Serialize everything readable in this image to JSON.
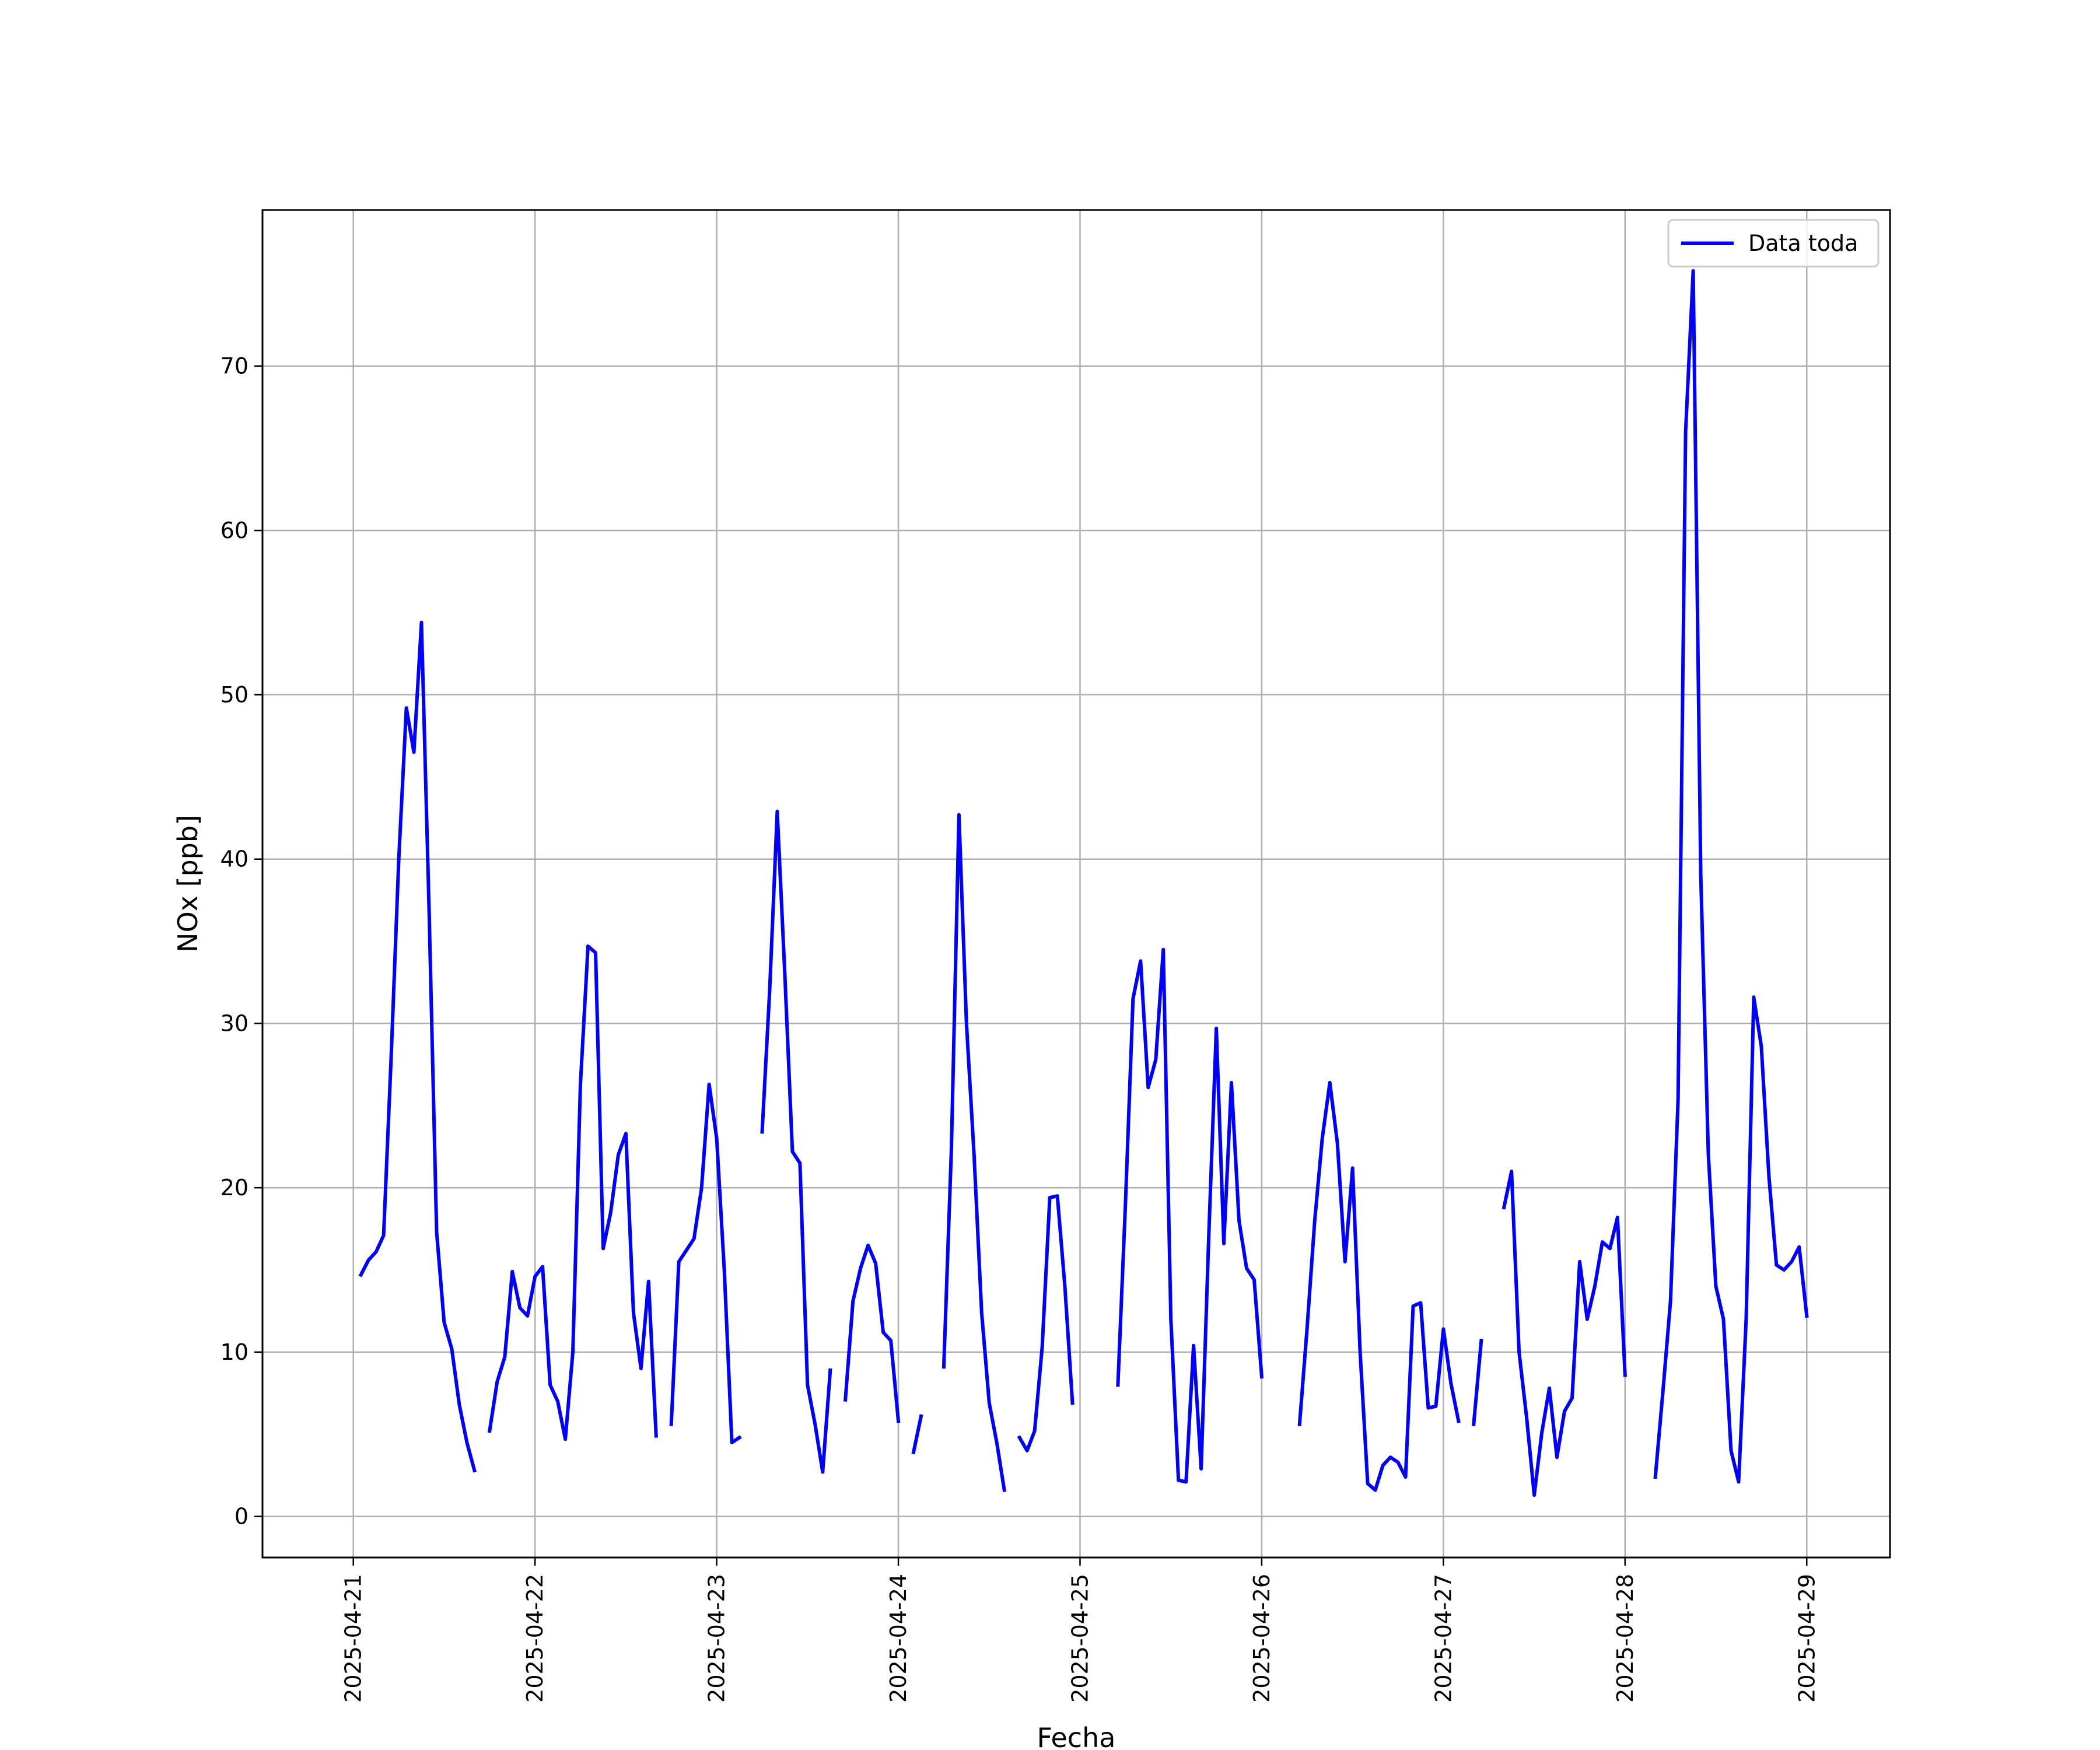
{
  "chart_data": {
    "type": "line",
    "title": "",
    "xlabel": "Fecha",
    "ylabel": "NOx [ppb]",
    "x_ticks": [
      "2025-04-21",
      "2025-04-22",
      "2025-04-23",
      "2025-04-24",
      "2025-04-25",
      "2025-04-26",
      "2025-04-27",
      "2025-04-28",
      "2025-04-29"
    ],
    "y_ticks": [
      "0",
      "10",
      "20",
      "30",
      "40",
      "50",
      "60",
      "70"
    ],
    "xlim": [
      "2025-04-20T12:00",
      "2025-04-29T11:00"
    ],
    "ylim": [
      -2.5,
      79.5
    ],
    "grid": true,
    "legend_position": "top-right",
    "series": [
      {
        "name": "Data toda",
        "color": "#0000ff",
        "segments": [
          [
            [
              "2025-04-21T01:00",
              14.7
            ],
            [
              "2025-04-21T02:00",
              15.6
            ],
            [
              "2025-04-21T03:00",
              16.1
            ],
            [
              "2025-04-21T04:00",
              17.1
            ],
            [
              "2025-04-21T05:00",
              28.0
            ],
            [
              "2025-04-21T06:00",
              40.0
            ],
            [
              "2025-04-21T07:00",
              49.2
            ],
            [
              "2025-04-21T08:00",
              46.5
            ],
            [
              "2025-04-21T09:00",
              54.4
            ],
            [
              "2025-04-21T10:00",
              37.0
            ],
            [
              "2025-04-21T11:00",
              17.3
            ],
            [
              "2025-04-21T12:00",
              11.8
            ],
            [
              "2025-04-21T13:00",
              10.2
            ],
            [
              "2025-04-21T14:00",
              6.8
            ],
            [
              "2025-04-21T15:00",
              4.5
            ],
            [
              "2025-04-21T16:00",
              2.8
            ]
          ],
          [
            [
              "2025-04-21T18:00",
              5.2
            ],
            [
              "2025-04-21T19:00",
              8.2
            ],
            [
              "2025-04-21T20:00",
              9.7
            ],
            [
              "2025-04-21T21:00",
              14.9
            ],
            [
              "2025-04-21T22:00",
              12.7
            ],
            [
              "2025-04-21T23:00",
              12.2
            ],
            [
              "2025-04-22T00:00",
              14.6
            ],
            [
              "2025-04-22T01:00",
              15.2
            ],
            [
              "2025-04-22T02:00",
              8.0
            ],
            [
              "2025-04-22T03:00",
              7.0
            ],
            [
              "2025-04-22T04:00",
              4.7
            ],
            [
              "2025-04-22T05:00",
              10.0
            ],
            [
              "2025-04-22T06:00",
              26.3
            ],
            [
              "2025-04-22T07:00",
              34.7
            ],
            [
              "2025-04-22T08:00",
              34.3
            ],
            [
              "2025-04-22T09:00",
              16.3
            ],
            [
              "2025-04-22T10:00",
              18.5
            ],
            [
              "2025-04-22T11:00",
              22.0
            ],
            [
              "2025-04-22T12:00",
              23.3
            ],
            [
              "2025-04-22T13:00",
              12.4
            ],
            [
              "2025-04-22T14:00",
              9.0
            ],
            [
              "2025-04-22T15:00",
              14.3
            ],
            [
              "2025-04-22T16:00",
              4.9
            ]
          ],
          [
            [
              "2025-04-22T18:00",
              5.6
            ],
            [
              "2025-04-22T19:00",
              15.5
            ],
            [
              "2025-04-22T20:00",
              16.2
            ],
            [
              "2025-04-22T21:00",
              16.9
            ],
            [
              "2025-04-22T22:00",
              20.0
            ],
            [
              "2025-04-22T23:00",
              26.3
            ],
            [
              "2025-04-23T00:00",
              23.0
            ],
            [
              "2025-04-23T01:00",
              15.0
            ],
            [
              "2025-04-23T02:00",
              4.5
            ],
            [
              "2025-04-23T03:00",
              4.8
            ]
          ],
          [
            [
              "2025-04-23T06:00",
              23.4
            ],
            [
              "2025-04-23T07:00",
              32.0
            ],
            [
              "2025-04-23T08:00",
              42.9
            ],
            [
              "2025-04-23T09:00",
              33.0
            ],
            [
              "2025-04-23T10:00",
              22.2
            ],
            [
              "2025-04-23T11:00",
              21.5
            ],
            [
              "2025-04-23T12:00",
              8.0
            ],
            [
              "2025-04-23T13:00",
              5.6
            ],
            [
              "2025-04-23T14:00",
              2.7
            ],
            [
              "2025-04-23T15:00",
              8.9
            ]
          ],
          [
            [
              "2025-04-23T17:00",
              7.1
            ],
            [
              "2025-04-23T18:00",
              13.1
            ],
            [
              "2025-04-23T19:00",
              15.1
            ],
            [
              "2025-04-23T20:00",
              16.5
            ],
            [
              "2025-04-23T21:00",
              15.4
            ],
            [
              "2025-04-23T22:00",
              11.2
            ],
            [
              "2025-04-23T23:00",
              10.7
            ],
            [
              "2025-04-24T00:00",
              5.8
            ]
          ],
          [
            [
              "2025-04-24T02:00",
              3.9
            ],
            [
              "2025-04-24T03:00",
              6.1
            ]
          ],
          [
            [
              "2025-04-24T06:00",
              9.1
            ],
            [
              "2025-04-24T07:00",
              22.3
            ],
            [
              "2025-04-24T08:00",
              42.7
            ],
            [
              "2025-04-24T09:00",
              30.0
            ],
            [
              "2025-04-24T10:00",
              22.0
            ],
            [
              "2025-04-24T11:00",
              12.4
            ],
            [
              "2025-04-24T12:00",
              6.9
            ],
            [
              "2025-04-24T13:00",
              4.5
            ],
            [
              "2025-04-24T14:00",
              1.6
            ]
          ],
          [
            [
              "2025-04-24T16:00",
              4.8
            ],
            [
              "2025-04-24T17:00",
              4.0
            ],
            [
              "2025-04-24T18:00",
              5.2
            ],
            [
              "2025-04-24T19:00",
              10.3
            ],
            [
              "2025-04-24T20:00",
              19.4
            ],
            [
              "2025-04-24T21:00",
              19.5
            ],
            [
              "2025-04-24T22:00",
              14.0
            ],
            [
              "2025-04-24T23:00",
              6.9
            ]
          ],
          [
            [
              "2025-04-25T05:00",
              8.0
            ],
            [
              "2025-04-25T06:00",
              19.0
            ],
            [
              "2025-04-25T07:00",
              31.5
            ],
            [
              "2025-04-25T08:00",
              33.8
            ],
            [
              "2025-04-25T09:00",
              26.1
            ],
            [
              "2025-04-25T10:00",
              27.8
            ],
            [
              "2025-04-25T11:00",
              34.5
            ],
            [
              "2025-04-25T12:00",
              12.0
            ],
            [
              "2025-04-25T13:00",
              2.2
            ],
            [
              "2025-04-25T14:00",
              2.1
            ],
            [
              "2025-04-25T15:00",
              10.4
            ],
            [
              "2025-04-25T16:00",
              2.9
            ],
            [
              "2025-04-25T17:00",
              17.0
            ],
            [
              "2025-04-25T18:00",
              29.7
            ],
            [
              "2025-04-25T19:00",
              16.6
            ],
            [
              "2025-04-25T20:00",
              26.4
            ],
            [
              "2025-04-25T21:00",
              18.0
            ],
            [
              "2025-04-25T22:00",
              15.1
            ],
            [
              "2025-04-25T23:00",
              14.4
            ],
            [
              "2025-04-26T00:00",
              8.5
            ]
          ],
          [
            [
              "2025-04-26T05:00",
              5.6
            ],
            [
              "2025-04-26T06:00",
              11.5
            ],
            [
              "2025-04-26T07:00",
              18.0
            ],
            [
              "2025-04-26T08:00",
              23.0
            ],
            [
              "2025-04-26T09:00",
              26.4
            ],
            [
              "2025-04-26T10:00",
              22.7
            ],
            [
              "2025-04-26T11:00",
              15.5
            ],
            [
              "2025-04-26T12:00",
              21.2
            ],
            [
              "2025-04-26T13:00",
              10.0
            ],
            [
              "2025-04-26T14:00",
              2.0
            ],
            [
              "2025-04-26T15:00",
              1.6
            ],
            [
              "2025-04-26T16:00",
              3.1
            ],
            [
              "2025-04-26T17:00",
              3.6
            ],
            [
              "2025-04-26T18:00",
              3.3
            ],
            [
              "2025-04-26T19:00",
              2.4
            ],
            [
              "2025-04-26T20:00",
              12.8
            ],
            [
              "2025-04-26T21:00",
              13.0
            ],
            [
              "2025-04-26T22:00",
              6.6
            ],
            [
              "2025-04-26T23:00",
              6.7
            ],
            [
              "2025-04-27T00:00",
              11.4
            ],
            [
              "2025-04-27T01:00",
              8.1
            ],
            [
              "2025-04-27T02:00",
              5.8
            ]
          ],
          [
            [
              "2025-04-27T04:00",
              5.6
            ],
            [
              "2025-04-27T05:00",
              10.7
            ]
          ],
          [
            [
              "2025-04-27T08:00",
              18.8
            ],
            [
              "2025-04-27T09:00",
              21.0
            ],
            [
              "2025-04-27T10:00",
              10.0
            ],
            [
              "2025-04-27T11:00",
              6.0
            ],
            [
              "2025-04-27T12:00",
              1.3
            ],
            [
              "2025-04-27T13:00",
              5.1
            ],
            [
              "2025-04-27T14:00",
              7.8
            ],
            [
              "2025-04-27T15:00",
              3.6
            ],
            [
              "2025-04-27T16:00",
              6.4
            ],
            [
              "2025-04-27T17:00",
              7.2
            ],
            [
              "2025-04-27T18:00",
              15.5
            ],
            [
              "2025-04-27T19:00",
              12.0
            ],
            [
              "2025-04-27T20:00",
              14.0
            ],
            [
              "2025-04-27T21:00",
              16.7
            ],
            [
              "2025-04-27T22:00",
              16.3
            ],
            [
              "2025-04-27T23:00",
              18.2
            ],
            [
              "2025-04-28T00:00",
              8.6
            ]
          ],
          [
            [
              "2025-04-28T04:00",
              2.4
            ],
            [
              "2025-04-28T05:00",
              7.6
            ],
            [
              "2025-04-28T06:00",
              13.1
            ],
            [
              "2025-04-28T07:00",
              25.4
            ],
            [
              "2025-04-28T08:00",
              66.0
            ],
            [
              "2025-04-28T09:00",
              75.8
            ],
            [
              "2025-04-28T10:00",
              39.0
            ],
            [
              "2025-04-28T11:00",
              22.0
            ],
            [
              "2025-04-28T12:00",
              14.0
            ],
            [
              "2025-04-28T13:00",
              12.0
            ],
            [
              "2025-04-28T14:00",
              4.0
            ],
            [
              "2025-04-28T15:00",
              2.1
            ],
            [
              "2025-04-28T16:00",
              12.0
            ],
            [
              "2025-04-28T17:00",
              31.6
            ],
            [
              "2025-04-28T18:00",
              28.6
            ],
            [
              "2025-04-28T19:00",
              20.7
            ],
            [
              "2025-04-28T20:00",
              15.3
            ],
            [
              "2025-04-28T21:00",
              15.0
            ],
            [
              "2025-04-28T22:00",
              15.5
            ],
            [
              "2025-04-28T23:00",
              16.4
            ],
            [
              "2025-04-29T00:00",
              12.2
            ]
          ]
        ]
      }
    ]
  }
}
